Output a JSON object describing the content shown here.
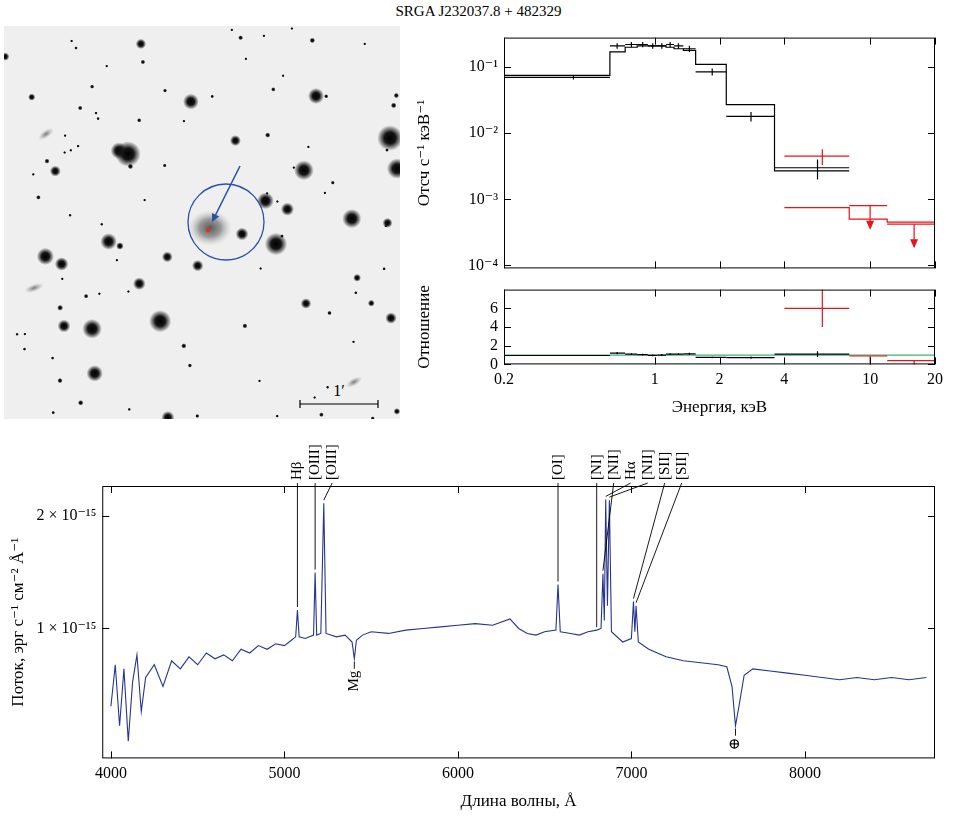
{
  "title": "SRGA J232037.8 + 482329",
  "image_panel": {
    "scale_bar": "1′"
  },
  "chart_data": [
    {
      "type": "scatter",
      "ylabel": "Отсч с⁻¹ кэВ⁻¹",
      "log": true,
      "grid": false,
      "tick_labels": "y",
      "xlim": [
        0.2,
        20
      ],
      "xticks": [
        0.2,
        1,
        2,
        4,
        10,
        20
      ],
      "ylim": [
        9e-05,
        0.28
      ],
      "yticks": [
        {
          "value": 0.0001,
          "label": "10⁻⁴"
        },
        {
          "value": 0.001,
          "label": "10⁻³"
        },
        {
          "value": 0.01,
          "label": "10⁻²"
        },
        {
          "value": 0.1,
          "label": "10⁻¹"
        }
      ],
      "series": [
        {
          "type": "scatter",
          "marker": "cross",
          "color": "#000000",
          "x": [
            0.42,
            0.67,
            0.78,
            0.88,
            0.98,
            1.08,
            1.18,
            1.29,
            1.45,
            1.85,
            2.8,
            5.7
          ],
          "x_low": [
            0.2,
            0.62,
            0.73,
            0.83,
            0.93,
            1.03,
            1.13,
            1.23,
            1.36,
            1.55,
            2.15,
            3.6
          ],
          "x_high": [
            0.62,
            0.73,
            0.83,
            0.93,
            1.03,
            1.13,
            1.23,
            1.36,
            1.55,
            2.15,
            3.6,
            8.0
          ],
          "values": [
            0.07,
            0.21,
            0.22,
            0.22,
            0.21,
            0.21,
            0.22,
            0.21,
            0.19,
            0.085,
            0.018,
            0.003
          ],
          "errors": [
            0.005,
            0.02,
            0.02,
            0.02,
            0.02,
            0.02,
            0.02,
            0.02,
            0.02,
            0.01,
            0.003,
            0.001
          ]
        },
        {
          "type": "line",
          "line_style": "steps",
          "color": "#000000",
          "bins": [
            0.2,
            0.62,
            0.73,
            0.83,
            0.93,
            1.03,
            1.13,
            1.23,
            1.36,
            1.55,
            2.15,
            3.6,
            8.0
          ],
          "values": [
            0.075,
            0.17,
            0.2,
            0.21,
            0.21,
            0.21,
            0.2,
            0.19,
            0.18,
            0.11,
            0.027,
            0.0027
          ]
        },
        {
          "type": "scatter",
          "marker": "cross",
          "color": "#e8131b",
          "x": [
            6,
            10,
            16
          ],
          "x_low": [
            4,
            8,
            12
          ],
          "x_high": [
            8,
            12,
            20
          ],
          "values": [
            0.0045,
            0.0008,
            0.00042
          ],
          "errors": [
            0.0012,
            null,
            null
          ],
          "upper_limits": [
            false,
            true,
            true
          ]
        },
        {
          "type": "line",
          "line_style": "steps",
          "color": "#e8131b",
          "bins": [
            4,
            8,
            12,
            20
          ],
          "values": [
            0.00075,
            0.0005,
            0.00045
          ]
        }
      ]
    },
    {
      "type": "scatter",
      "xlabel": "Энергия, кэВ",
      "ylabel": "Отношение",
      "log": "x",
      "grid": false,
      "xlim": [
        0.2,
        20
      ],
      "xticks": [
        0.2,
        1,
        2,
        4,
        10,
        20
      ],
      "ylim": [
        0,
        8
      ],
      "yticks": [
        0,
        2,
        4,
        6
      ],
      "series": [
        {
          "type": "scatter",
          "marker": "cross",
          "color": "#000000",
          "x": [
            0.42,
            0.67,
            0.78,
            0.88,
            0.98,
            1.08,
            1.18,
            1.29,
            1.45,
            1.85,
            2.8,
            5.7
          ],
          "x_low": [
            0.2,
            0.62,
            0.73,
            0.83,
            0.93,
            1.03,
            1.13,
            1.23,
            1.36,
            1.55,
            2.15,
            3.6
          ],
          "x_high": [
            0.62,
            0.73,
            0.83,
            0.93,
            1.03,
            1.13,
            1.23,
            1.36,
            1.55,
            2.15,
            3.6,
            8.0
          ],
          "values": [
            0.95,
            1.2,
            1.1,
            1.05,
            0.97,
            1.0,
            1.1,
            1.1,
            1.12,
            0.75,
            0.72,
            1.1
          ],
          "errors": [
            0.06,
            0.12,
            0.1,
            0.1,
            0.1,
            0.1,
            0.1,
            0.1,
            0.12,
            0.08,
            0.12,
            0.3
          ]
        },
        {
          "type": "scatter",
          "marker": "cross",
          "color": "#e8131b",
          "x": [
            6,
            10,
            16
          ],
          "x_low": [
            4,
            8,
            12
          ],
          "x_high": [
            8,
            12,
            20
          ],
          "values": [
            6,
            0.9,
            0.4
          ],
          "errors": [
            2,
            null,
            null
          ],
          "upper_limits": [
            false,
            true,
            true
          ]
        },
        {
          "type": "line",
          "color": "#3cb371",
          "x": [
            0.2,
            20
          ],
          "values": [
            1,
            1
          ]
        }
      ]
    },
    {
      "type": "line",
      "xlabel": "Длина волны, Å",
      "ylabel": "Поток, эрг с⁻¹ см⁻² Å⁻¹",
      "log": "y",
      "grid": false,
      "color": "#27348b",
      "xlim": [
        3950,
        8750
      ],
      "xticks": [
        4000,
        5000,
        6000,
        7000,
        8000
      ],
      "ylim": [
        4.5e-16,
        2.4e-15
      ],
      "yticks": [
        {
          "value": 1e-15,
          "label": "1 × 10⁻¹⁵"
        },
        {
          "value": 2e-15,
          "label": "2 × 10⁻¹⁵"
        }
      ],
      "x": [
        4000,
        4025,
        4050,
        4075,
        4100,
        4125,
        4150,
        4175,
        4200,
        4250,
        4300,
        4350,
        4400,
        4450,
        4500,
        4550,
        4600,
        4650,
        4700,
        4750,
        4800,
        4850,
        4900,
        4950,
        5000,
        5040,
        5065,
        5075,
        5085,
        5120,
        5168,
        5177,
        5186,
        5210,
        5227,
        5240,
        5300,
        5350,
        5390,
        5403,
        5415,
        5450,
        5500,
        5600,
        5700,
        5800,
        5900,
        6000,
        6100,
        6200,
        6300,
        6350,
        6400,
        6450,
        6500,
        6565,
        6577,
        6590,
        6650,
        6700,
        6750,
        6800,
        6825,
        6836,
        6844,
        6852,
        6862,
        6873,
        6885,
        6950,
        7000,
        7012,
        7020,
        7027,
        7040,
        7100,
        7200,
        7300,
        7400,
        7500,
        7550,
        7580,
        7600,
        7620,
        7650,
        7700,
        7800,
        7900,
        8000,
        8100,
        8200,
        8300,
        8400,
        8500,
        8600,
        8700
      ],
      "values": [
        6.2e-16,
        8e-16,
        5.5e-16,
        7.8e-16,
        5e-16,
        7.2e-16,
        8.5e-16,
        6e-16,
        7.4e-16,
        8e-16,
        7e-16,
        8.2e-16,
        7.8e-16,
        8.4e-16,
        8e-16,
        8.6e-16,
        8.3e-16,
        8.5e-16,
        8.2e-16,
        8.8e-16,
        8.6e-16,
        9e-16,
        8.8e-16,
        9.1e-16,
        9e-16,
        9.3e-16,
        9.5e-16,
        1.12e-15,
        9.5e-16,
        9.4e-16,
        9.6e-16,
        1.41e-15,
        9.6e-16,
        9.7e-16,
        2.16e-15,
        9.7e-16,
        9.5e-16,
        9.6e-16,
        9.2e-16,
        8.3e-16,
        9.3e-16,
        9.6e-16,
        9.8e-16,
        9.7e-16,
        9.9e-16,
        1e-15,
        1.01e-15,
        1.02e-15,
        1.03e-15,
        1.02e-15,
        1.06e-15,
        1e-15,
        9.7e-16,
        9.6e-16,
        9.8e-16,
        9.9e-16,
        1.31e-15,
        9.8e-16,
        9.7e-16,
        9.6e-16,
        9.8e-16,
        9.9e-16,
        1e-15,
        1.4e-15,
        1.05e-15,
        2.21e-15,
        1.15e-15,
        2.2e-15,
        9.8e-16,
        9.2e-16,
        9.4e-16,
        1.18e-15,
        9.8e-16,
        1.15e-15,
        9.2e-16,
        8.8e-16,
        8.4e-16,
        8.2e-16,
        8.1e-16,
        8e-16,
        7.9e-16,
        7e-16,
        5.5e-16,
        6.2e-16,
        7.5e-16,
        7.8e-16,
        7.7e-16,
        7.6e-16,
        7.5e-16,
        7.4e-16,
        7.3e-16,
        7.4e-16,
        7.3e-16,
        7.4e-16,
        7.3e-16,
        7.4e-16
      ],
      "line_labels": [
        {
          "text": "Hβ",
          "x": 5075
        },
        {
          "text": "[OIII]",
          "x": 5177
        },
        {
          "text": "[OIII]",
          "x": 5227
        },
        {
          "text": "[OI]",
          "x": 6577
        },
        {
          "text": "[NI]",
          "x": 6800
        },
        {
          "text": "[NII]",
          "x": 6836
        },
        {
          "text": "Hα",
          "x": 6852
        },
        {
          "text": "[NII]",
          "x": 6873
        },
        {
          "text": "[SII]",
          "x": 7012
        },
        {
          "text": "[SII]",
          "x": 7027
        }
      ],
      "absorption_labels": [
        {
          "text": "Mg",
          "x": 5403
        },
        {
          "text": "⊕",
          "x": 7600
        }
      ]
    }
  ]
}
